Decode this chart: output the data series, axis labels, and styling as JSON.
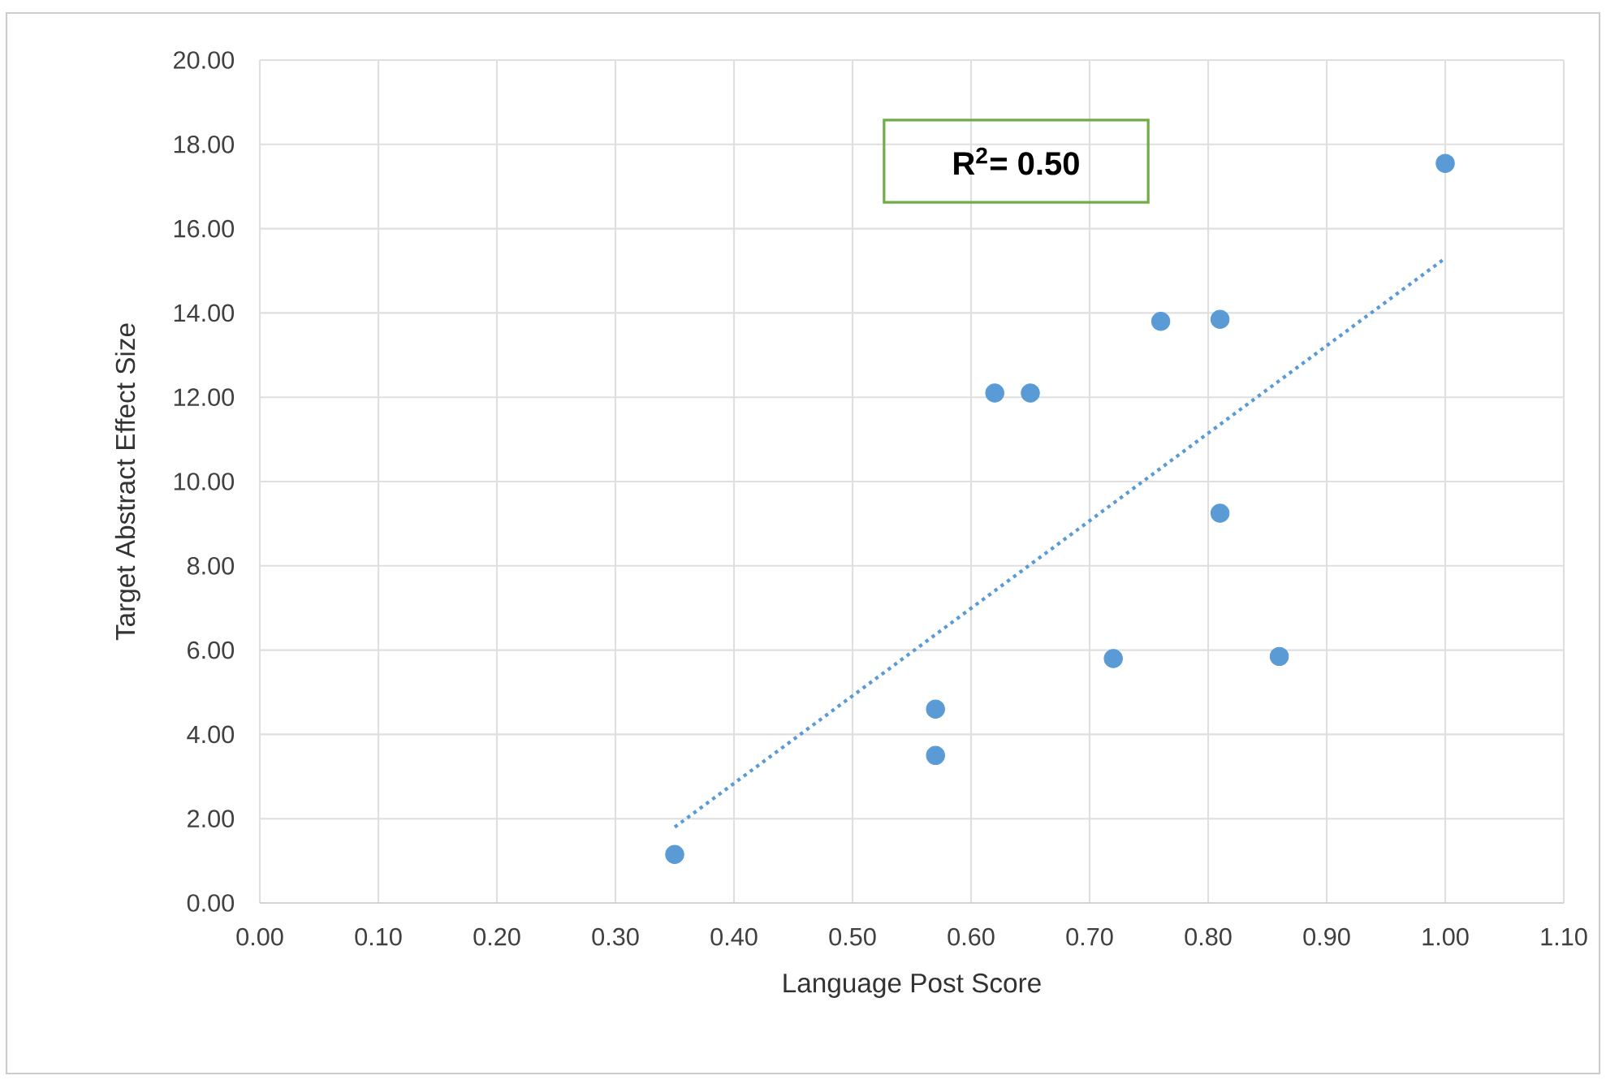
{
  "chart_data": {
    "type": "scatter",
    "xlabel": "Language Post Score",
    "ylabel": "Target Abstract Effect Size",
    "annotations": [
      "R$^{2}$= 0.50"
    ],
    "xlim": [
      0,
      1.1
    ],
    "ylim": [
      0,
      20
    ],
    "xticks": [
      {
        "value": 0,
        "label": "0.00"
      },
      {
        "value": 0.1,
        "label": "0.10"
      },
      {
        "value": 0.2,
        "label": "0.20"
      },
      {
        "value": 0.3,
        "label": "0.30"
      },
      {
        "value": 0.4,
        "label": "0.40"
      },
      {
        "value": 0.5,
        "label": "0.50"
      },
      {
        "value": 0.6,
        "label": "0.60"
      },
      {
        "value": 0.7,
        "label": "0.70"
      },
      {
        "value": 0.8,
        "label": "0.80"
      },
      {
        "value": 0.9,
        "label": "0.90"
      },
      {
        "value": 1.0,
        "label": "1.00"
      },
      {
        "value": 1.1,
        "label": "1.10"
      }
    ],
    "yticks": [
      {
        "value": 0,
        "label": "0.00"
      },
      {
        "value": 2,
        "label": "2.00"
      },
      {
        "value": 4,
        "label": "4.00"
      },
      {
        "value": 6,
        "label": "6.00"
      },
      {
        "value": 8,
        "label": "8.00"
      },
      {
        "value": 10,
        "label": "10.00"
      },
      {
        "value": 12,
        "label": "12.00"
      },
      {
        "value": 14,
        "label": "14.00"
      },
      {
        "value": 16,
        "label": "16.00"
      },
      {
        "value": 18,
        "label": "18.00"
      },
      {
        "value": 20,
        "label": "20.00"
      }
    ],
    "grid": true,
    "series": [
      {
        "type": "scatter",
        "marker": "circle",
        "color": "#5b9bd5",
        "x": [
          0.35,
          0.57,
          0.57,
          0.62,
          0.65,
          0.72,
          0.76,
          0.81,
          0.81,
          0.86,
          1.0
        ],
        "values": [
          1.15,
          4.6,
          3.5,
          12.1,
          12.1,
          5.8,
          13.8,
          13.85,
          9.25,
          5.85,
          17.55
        ]
      },
      {
        "type": "line",
        "marker": "none",
        "line_style": "dotted",
        "color": "#5b9bd5",
        "x": [
          0.35,
          1.0
        ],
        "values": [
          1.8,
          15.3
        ]
      }
    ]
  }
}
